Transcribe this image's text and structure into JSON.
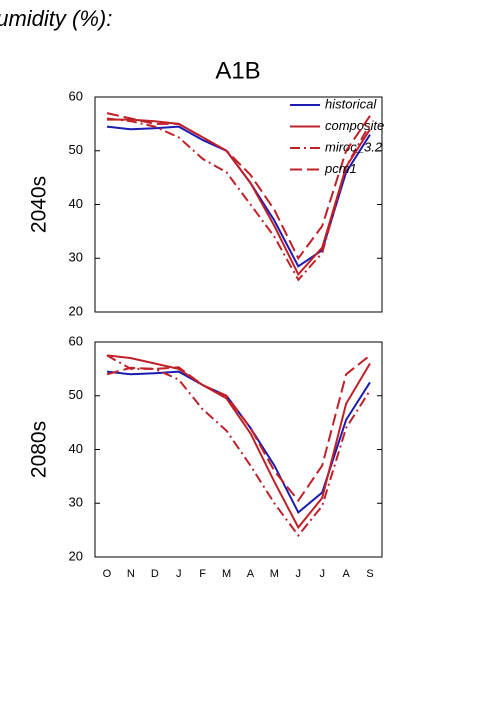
{
  "header": "humidity (%):",
  "chart_data": [
    {
      "type": "line",
      "title": "A1B",
      "ylabel": "2040s",
      "legend": "upper right",
      "ylim": [
        20,
        60
      ],
      "yticks": [
        20,
        30,
        40,
        50,
        60
      ],
      "series": [
        {
          "name": "historical",
          "color": "#1c1cb0",
          "linestyle": "solid",
          "values": [
            54.5,
            54,
            54.2,
            54.5,
            52,
            50,
            44,
            37,
            28.5,
            31.5,
            46,
            53
          ]
        },
        {
          "name": "composite",
          "color": "#c02028",
          "linestyle": "solid",
          "values": [
            55.8,
            55.8,
            55.5,
            55,
            52.5,
            50,
            44,
            36,
            27,
            32,
            47,
            54
          ]
        },
        {
          "name": "miroc_3.2",
          "color": "#c02028",
          "linestyle": "dashdot",
          "values": [
            56,
            55.5,
            54.5,
            52.5,
            48.5,
            46,
            40,
            34,
            26,
            31,
            47,
            55
          ]
        },
        {
          "name": "pcm1",
          "color": "#c02028",
          "linestyle": "dashed",
          "values": [
            57,
            56,
            55,
            55,
            52.5,
            50,
            45.5,
            39,
            30,
            36,
            50,
            56.5
          ]
        }
      ]
    },
    {
      "type": "line",
      "ylabel": "2080s",
      "categories": [
        "O",
        "N",
        "D",
        "J",
        "F",
        "M",
        "A",
        "M",
        "J",
        "J",
        "A",
        "S"
      ],
      "ylim": [
        20,
        60
      ],
      "yticks": [
        20,
        30,
        40,
        50,
        60
      ],
      "series": [
        {
          "color": "#1c1cb0",
          "linestyle": "solid",
          "values": [
            54.5,
            54,
            54.2,
            54.5,
            52,
            50,
            44,
            37,
            28.3,
            32,
            45.5,
            52.5
          ]
        },
        {
          "color": "#c02028",
          "linestyle": "solid",
          "values": [
            57.5,
            57,
            56,
            55,
            52,
            49.5,
            43,
            34,
            25.5,
            31,
            48.5,
            56
          ]
        },
        {
          "color": "#c02028",
          "linestyle": "dashdot",
          "values": [
            57.5,
            55,
            55,
            53,
            47.5,
            43.5,
            37,
            30,
            24,
            29.5,
            44,
            51
          ]
        },
        {
          "color": "#c02028",
          "linestyle": "dashed",
          "values": [
            54,
            55.2,
            55,
            55.3,
            52,
            50,
            44,
            36,
            30.5,
            37,
            54,
            57.5
          ]
        }
      ]
    }
  ]
}
